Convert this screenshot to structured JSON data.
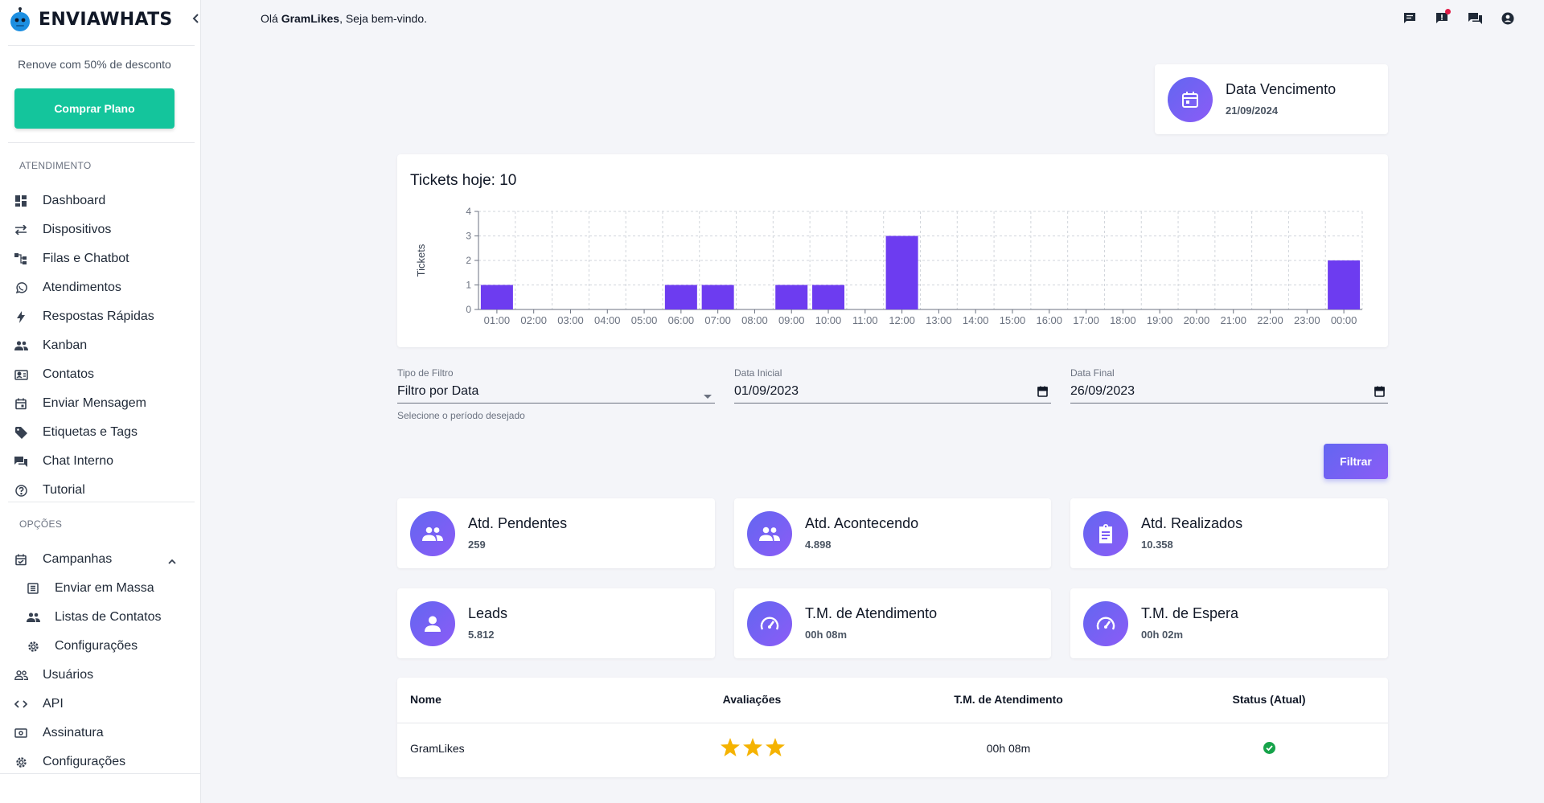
{
  "brand": {
    "name": "ENVIAWHATS"
  },
  "sidebar": {
    "promo": "Renove com 50% de desconto",
    "buy_label": "Comprar Plano",
    "section_atendimento": "ATENDIMENTO",
    "section_opcoes": "OPÇÕES",
    "items": [
      {
        "label": "Dashboard",
        "icon": "dashboard-icon"
      },
      {
        "label": "Dispositivos",
        "icon": "sync-arrows-icon"
      },
      {
        "label": "Filas e Chatbot",
        "icon": "flow-icon"
      },
      {
        "label": "Atendimentos",
        "icon": "whatsapp-icon"
      },
      {
        "label": "Respostas Rápidas",
        "icon": "flash-icon"
      },
      {
        "label": "Kanban",
        "icon": "people-icon"
      },
      {
        "label": "Contatos",
        "icon": "contact-card-icon"
      },
      {
        "label": "Enviar Mensagem",
        "icon": "calendar-icon"
      },
      {
        "label": "Etiquetas e Tags",
        "icon": "tag-icon"
      },
      {
        "label": "Chat Interno",
        "icon": "forum-icon"
      },
      {
        "label": "Tutorial",
        "icon": "help-icon"
      }
    ],
    "campanhas": {
      "label": "Campanhas",
      "children": [
        {
          "label": "Enviar em Massa",
          "icon": "list-icon"
        },
        {
          "label": "Listas de Contatos",
          "icon": "people-icon"
        },
        {
          "label": "Configurações",
          "icon": "gear-icon"
        }
      ]
    },
    "bottom_items": [
      {
        "label": "Usuários",
        "icon": "people-outline-icon"
      },
      {
        "label": "API",
        "icon": "code-icon"
      },
      {
        "label": "Assinatura",
        "icon": "money-icon"
      },
      {
        "label": "Configurações",
        "icon": "gear-icon"
      }
    ]
  },
  "header": {
    "greeting_prefix": "Olá ",
    "user_name": "GramLikes",
    "greeting_suffix": ", Seja bem-vindo."
  },
  "due_card": {
    "title": "Data Vencimento",
    "value": "21/09/2024"
  },
  "chart": {
    "title": "Tickets hoje: 10"
  },
  "chart_data": {
    "type": "bar",
    "title": "Tickets hoje: 10",
    "ylabel": "Tickets",
    "xlabel": "",
    "ylim": [
      0,
      4
    ],
    "yticks": [
      0,
      1,
      2,
      3,
      4
    ],
    "grid": true,
    "color": "#6d3cf0",
    "categories": [
      "01:00",
      "02:00",
      "03:00",
      "04:00",
      "05:00",
      "06:00",
      "07:00",
      "08:00",
      "09:00",
      "10:00",
      "11:00",
      "12:00",
      "13:00",
      "14:00",
      "15:00",
      "16:00",
      "17:00",
      "18:00",
      "19:00",
      "20:00",
      "21:00",
      "22:00",
      "23:00",
      "00:00"
    ],
    "values": [
      1,
      0,
      0,
      0,
      0,
      1,
      1,
      0,
      1,
      1,
      0,
      3,
      0,
      0,
      0,
      0,
      0,
      0,
      0,
      0,
      0,
      0,
      0,
      2
    ]
  },
  "filters": {
    "type_label": "Tipo de Filtro",
    "type_value": "Filtro por Data",
    "type_help": "Selecione o período desejado",
    "start_label": "Data Inicial",
    "start_value": "01/09/2023",
    "end_label": "Data Final",
    "end_value": "26/09/2023",
    "filter_button": "Filtrar"
  },
  "kpis": [
    {
      "title": "Atd. Pendentes",
      "value": "259",
      "icon": "group-icon"
    },
    {
      "title": "Atd. Acontecendo",
      "value": "4.898",
      "icon": "group-icon"
    },
    {
      "title": "Atd. Realizados",
      "value": "10.358",
      "icon": "clipboard-icon"
    },
    {
      "title": "Leads",
      "value": "5.812",
      "icon": "person-icon"
    },
    {
      "title": "T.M. de Atendimento",
      "value": "00h 08m",
      "icon": "speed-icon"
    },
    {
      "title": "T.M. de Espera",
      "value": "00h 02m",
      "icon": "speed-icon"
    }
  ],
  "table": {
    "headers": {
      "name": "Nome",
      "rating": "Avaliações",
      "avg_time": "T.M. de Atendimento",
      "status": "Status (Atual)"
    },
    "rows": [
      {
        "name": "GramLikes",
        "stars": 3,
        "avg_time": "00h 08m",
        "status": "online"
      }
    ]
  },
  "colors": {
    "accent": "#6366f1",
    "bar": "#6d3cf0",
    "buy": "#14c59c",
    "status_ok": "#16a34a",
    "star": "#f5b301"
  }
}
